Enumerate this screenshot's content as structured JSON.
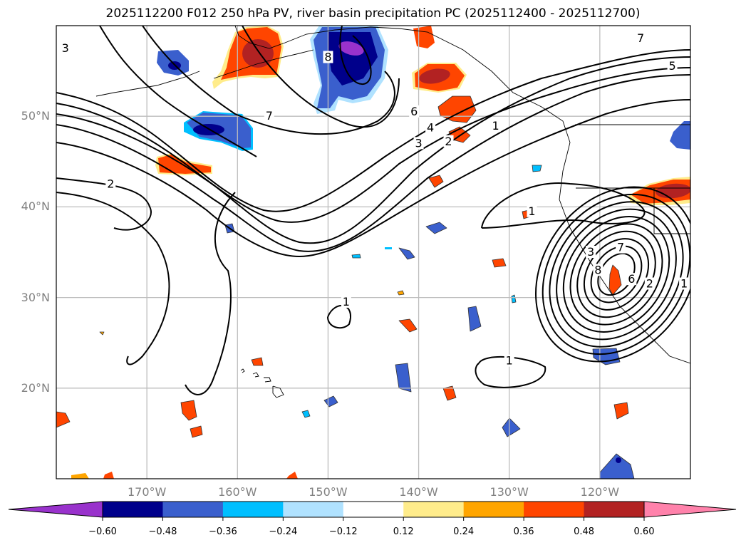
{
  "title": "2025112200 F012 250 hPa PV, river basin precipitation PC (2025112400 - 2025112700)",
  "map": {
    "projection": "PlateCarree",
    "extent": {
      "lon_min": -180,
      "lon_max": -110,
      "lat_min": 10,
      "lat_max": 60
    },
    "lat_ticks": [
      {
        "value": 50,
        "label": "50°N"
      },
      {
        "value": 40,
        "label": "40°N"
      },
      {
        "value": 30,
        "label": "30°N"
      },
      {
        "value": 20,
        "label": "20°N"
      }
    ],
    "lon_ticks": [
      {
        "value": -170,
        "label": "170°W"
      },
      {
        "value": -160,
        "label": "160°W"
      },
      {
        "value": -150,
        "label": "150°W"
      },
      {
        "value": -140,
        "label": "140°W"
      },
      {
        "value": -130,
        "label": "130°W"
      },
      {
        "value": -120,
        "label": "120°W"
      }
    ],
    "gridline_color": "#bdbdbd",
    "contour_field": "250 hPa PV",
    "contour_labels": [
      {
        "text": "3",
        "lon": -179,
        "lat": 57.5
      },
      {
        "text": "8",
        "lon": -150,
        "lat": 56.5
      },
      {
        "text": "7",
        "lon": -156.5,
        "lat": 50
      },
      {
        "text": "6",
        "lon": -140.5,
        "lat": 50.5
      },
      {
        "text": "4",
        "lon": -138.7,
        "lat": 48.7
      },
      {
        "text": "3",
        "lon": -140,
        "lat": 47
      },
      {
        "text": "2",
        "lon": -136.7,
        "lat": 47.2
      },
      {
        "text": "1",
        "lon": -131.5,
        "lat": 48.9
      },
      {
        "text": "7",
        "lon": -115.5,
        "lat": 58.6
      },
      {
        "text": "5",
        "lon": -112,
        "lat": 55.5
      },
      {
        "text": "2",
        "lon": -174,
        "lat": 42.5
      },
      {
        "text": "1",
        "lon": -127.5,
        "lat": 39.5
      },
      {
        "text": "1",
        "lon": -148,
        "lat": 29.5
      },
      {
        "text": "1",
        "lon": -130,
        "lat": 23
      },
      {
        "text": "3",
        "lon": -121,
        "lat": 35
      },
      {
        "text": "7",
        "lon": -117.7,
        "lat": 35.5
      },
      {
        "text": "8",
        "lon": -120.2,
        "lat": 33
      },
      {
        "text": "6",
        "lon": -116.5,
        "lat": 32
      },
      {
        "text": "2",
        "lon": -114.5,
        "lat": 31.5
      },
      {
        "text": "1",
        "lon": -110.7,
        "lat": 31.5
      }
    ]
  },
  "colorbar": {
    "boundaries": [
      "−0.60",
      "−0.48",
      "−0.36",
      "−0.24",
      "−0.12",
      "0.12",
      "0.24",
      "0.36",
      "0.48",
      "0.60"
    ],
    "colors": [
      "#9932cc",
      "#00008b",
      "#3a5fcd",
      "#00bfff",
      "#b0e2ff",
      "#ffffff",
      "#ffec8b",
      "#ffa500",
      "#ff4500",
      "#b22222",
      "#ff82ab"
    ],
    "extend": "both"
  },
  "chart_data": {
    "type": "map",
    "title": "2025112200 F012 250 hPa PV, river basin precipitation PC (2025112400 - 2025112700)",
    "xlabel": "",
    "ylabel": "",
    "xlim": [
      -180,
      -110
    ],
    "ylim": [
      10,
      60
    ],
    "grid": true,
    "filled_field": "river basin precipitation PC",
    "color_levels": [
      -0.6,
      -0.48,
      -0.36,
      -0.24,
      -0.12,
      0.12,
      0.24,
      0.36,
      0.48,
      0.6
    ],
    "legend": "bottom colorbar"
  }
}
